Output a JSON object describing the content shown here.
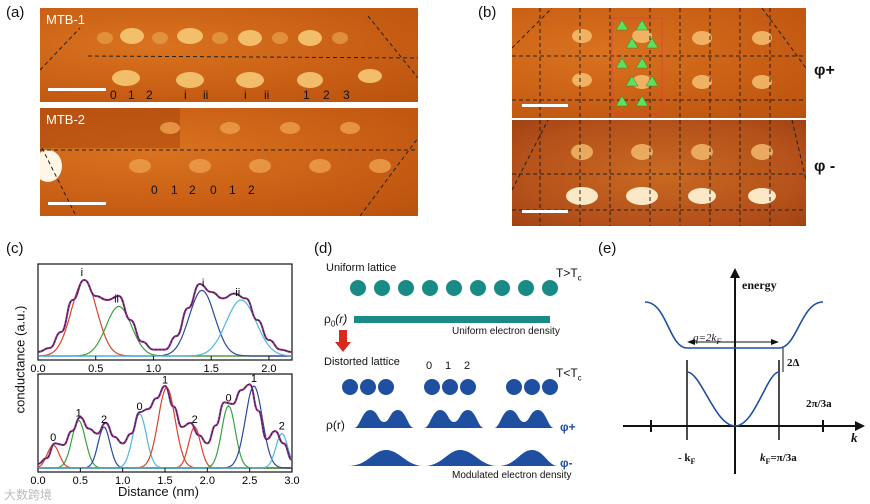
{
  "panels": {
    "a": {
      "label": "(a)",
      "top_title": "MTB-1",
      "bottom_title": "MTB-2",
      "top_labels": [
        "0",
        "1",
        "2",
        "i",
        "ii",
        "i",
        "ii",
        "1",
        "2",
        "3"
      ],
      "bottom_labels": [
        "0",
        "1",
        "2",
        "0",
        "1",
        "2"
      ]
    },
    "b": {
      "label": "(b)",
      "top_phase": "φ+",
      "bottom_phase": "φ -"
    },
    "c": {
      "label": "(c)",
      "ylabel": "conductance (a.u.)",
      "xlabel": "Distance (nm)"
    },
    "d": {
      "label": "(d)",
      "uniform_lattice": "Uniform lattice",
      "t_high": "T>T",
      "t_high_sub": "c",
      "rho0": "ρ",
      "rho0_sub": "0",
      "rho0_arg": "(r)",
      "uniform_density": "Uniform electron density",
      "distorted_lattice": "Distorted lattice",
      "t_low": "T<T",
      "t_low_sub": "c",
      "distorted_index": [
        "0",
        "1",
        "2"
      ],
      "rho": "ρ(r)",
      "phi_plus": "φ+",
      "phi_minus": "φ-",
      "modulated_density": "Modulated electron density",
      "colors": {
        "atom": "#1a8a84",
        "atom_dark": "#1f4fa0",
        "arrow": "#d62a1a"
      }
    },
    "e": {
      "label": "(e)",
      "energy": "energy",
      "k": "k",
      "q": "q=2k",
      "q_sub": "F",
      "gap": "2Δ",
      "period": "2π/3a",
      "minus_kf": "- k",
      "minus_kf_sub": "F",
      "kf": "k",
      "kf_sub": "F",
      "kf_eq": "=π/3a",
      "color": "#1f4f9f"
    }
  },
  "watermark": "大数跨境",
  "chart_data": [
    {
      "type": "line",
      "title": "",
      "xlabel": "",
      "ylabel": "conductance (a.u.)",
      "xlim": [
        0.0,
        2.2
      ],
      "xticks": [
        "0.0",
        "0.5",
        "1.0",
        "1.5",
        "2.0"
      ],
      "xtick_values": [
        0.0,
        0.5,
        1.0,
        1.5,
        2.0
      ],
      "peak_labels": [
        {
          "text": "i",
          "x": 0.38
        },
        {
          "text": "ii",
          "x": 0.68
        },
        {
          "text": "i",
          "x": 1.43
        },
        {
          "text": "ii",
          "x": 1.73
        }
      ],
      "series": [
        {
          "name": "total",
          "color": "#8a2e8a",
          "x": [
            0.0,
            0.1,
            0.2,
            0.3,
            0.4,
            0.5,
            0.6,
            0.7,
            0.8,
            0.9,
            1.0,
            1.1,
            1.2,
            1.3,
            1.4,
            1.5,
            1.6,
            1.7,
            1.8,
            1.9,
            2.0,
            2.1,
            2.2
          ],
          "values": [
            0.05,
            0.1,
            0.3,
            0.7,
            0.95,
            0.75,
            0.7,
            0.75,
            0.45,
            0.18,
            0.08,
            0.08,
            0.25,
            0.6,
            0.9,
            0.8,
            0.72,
            0.78,
            0.72,
            0.45,
            0.2,
            0.08,
            0.05
          ]
        },
        {
          "name": "peak-i",
          "color": "#d9442b",
          "center": 0.4,
          "height": 0.95,
          "width": 0.11
        },
        {
          "name": "peak-ii",
          "color": "#3aa33a",
          "center": 0.7,
          "height": 0.62,
          "width": 0.11
        },
        {
          "name": "peak-i-2",
          "color": "#2a48a0",
          "center": 1.42,
          "height": 0.82,
          "width": 0.11
        },
        {
          "name": "peak-ii-2",
          "color": "#4db8e0",
          "center": 1.76,
          "height": 0.7,
          "width": 0.13
        }
      ]
    },
    {
      "type": "line",
      "title": "",
      "xlabel": "Distance (nm)",
      "ylabel": "conductance (a.u.)",
      "xlim": [
        0.0,
        3.0
      ],
      "xticks": [
        "0.0",
        "0.5",
        "1.0",
        "1.5",
        "2.0",
        "2.5",
        "3.0"
      ],
      "xtick_values": [
        0.0,
        0.5,
        1.0,
        1.5,
        2.0,
        2.5,
        3.0
      ],
      "peak_labels": [
        {
          "text": "0",
          "x": 0.18
        },
        {
          "text": "1",
          "x": 0.48
        },
        {
          "text": "2",
          "x": 0.78
        },
        {
          "text": "0",
          "x": 1.2
        },
        {
          "text": "1",
          "x": 1.5
        },
        {
          "text": "2",
          "x": 1.85
        },
        {
          "text": "0",
          "x": 2.25
        },
        {
          "text": "1",
          "x": 2.55
        },
        {
          "text": "2",
          "x": 2.88
        }
      ],
      "series": [
        {
          "name": "total",
          "color": "#8a2e8a",
          "x": [
            0.0,
            0.1,
            0.2,
            0.3,
            0.4,
            0.5,
            0.6,
            0.7,
            0.8,
            0.9,
            1.0,
            1.1,
            1.2,
            1.3,
            1.4,
            1.5,
            1.6,
            1.7,
            1.8,
            1.9,
            2.0,
            2.1,
            2.2,
            2.3,
            2.4,
            2.5,
            2.6,
            2.7,
            2.8,
            2.9,
            3.0
          ],
          "values": [
            0.05,
            0.12,
            0.3,
            0.28,
            0.45,
            0.62,
            0.48,
            0.42,
            0.55,
            0.38,
            0.3,
            0.42,
            0.68,
            0.72,
            0.85,
            1.0,
            0.75,
            0.5,
            0.55,
            0.4,
            0.3,
            0.52,
            0.8,
            0.78,
            0.95,
            1.02,
            0.7,
            0.35,
            0.45,
            0.3,
            0.1
          ]
        },
        {
          "name": "peak-0a",
          "color": "#d9442b",
          "center": 0.18,
          "height": 0.28,
          "width": 0.07
        },
        {
          "name": "peak-1a",
          "color": "#3aa33a",
          "center": 0.48,
          "height": 0.58,
          "width": 0.08
        },
        {
          "name": "peak-2a",
          "color": "#2a48a0",
          "center": 0.78,
          "height": 0.5,
          "width": 0.07
        },
        {
          "name": "peak-0b",
          "color": "#4db8e0",
          "center": 1.2,
          "height": 0.66,
          "width": 0.08
        },
        {
          "name": "peak-1b",
          "color": "#d9442b",
          "center": 1.52,
          "height": 0.98,
          "width": 0.1
        },
        {
          "name": "peak-2b",
          "color": "#d9442b",
          "center": 1.85,
          "height": 0.5,
          "width": 0.07
        },
        {
          "name": "peak-0c",
          "color": "#3aa33a",
          "center": 2.25,
          "height": 0.76,
          "width": 0.08
        },
        {
          "name": "peak-1c",
          "color": "#2a48a0",
          "center": 2.55,
          "height": 1.0,
          "width": 0.1
        },
        {
          "name": "peak-2c",
          "color": "#4db8e0",
          "center": 2.88,
          "height": 0.42,
          "width": 0.07
        }
      ]
    },
    {
      "type": "line",
      "title": "",
      "xlabel": "k",
      "ylabel": "energy",
      "series": [
        {
          "name": "band",
          "color": "#1f4f9f",
          "shape": "gapped-dispersion"
        }
      ]
    }
  ]
}
